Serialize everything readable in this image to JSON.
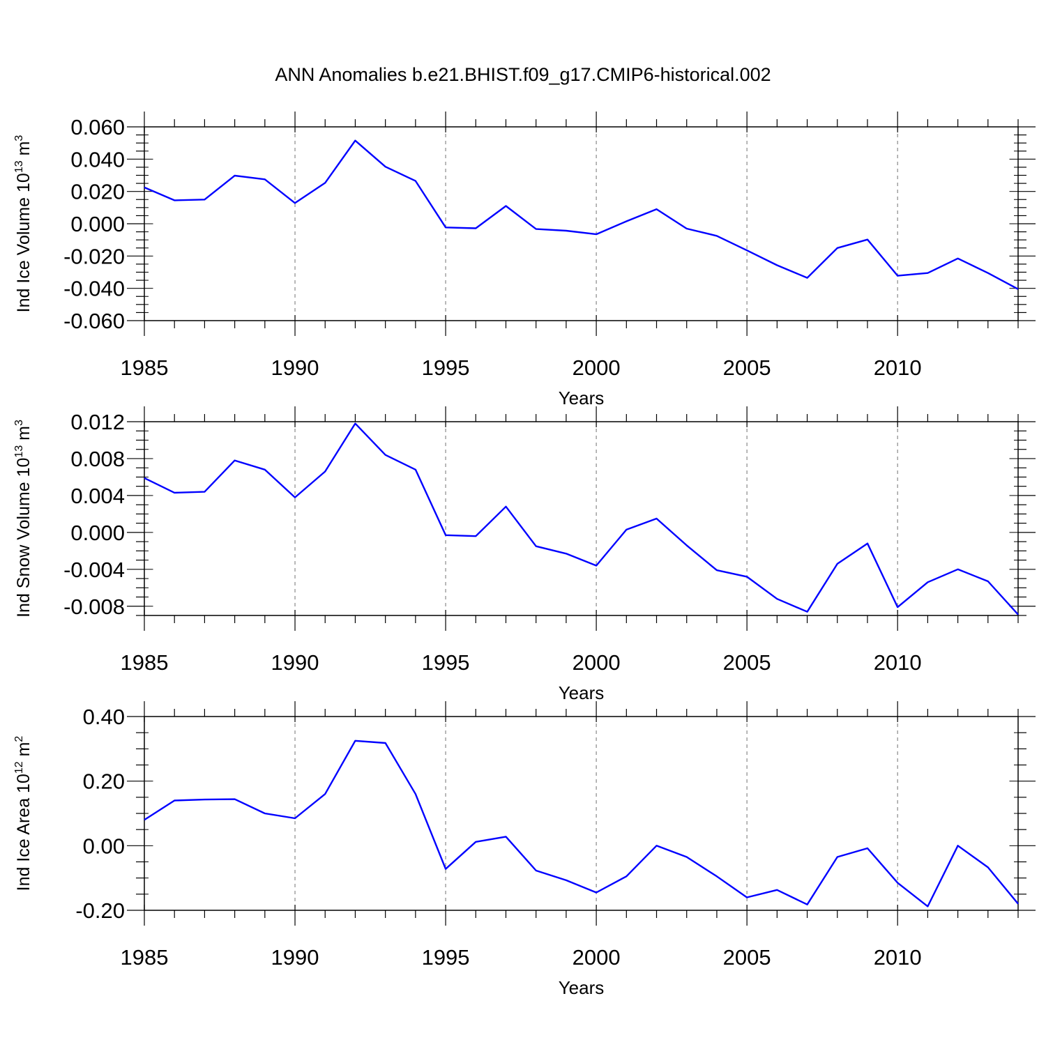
{
  "title": "ANN Anomalies b.e21.BHIST.f09_g17.CMIP6-historical.002",
  "chart_data": [
    {
      "type": "line",
      "ylabel_main": "Ind Ice Volume 10",
      "ylabel_exp": "13",
      "ylabel_unit": " m",
      "ylabel_unit_exp": "3",
      "xlabel": "Years",
      "xlim": [
        1985,
        2014
      ],
      "ylim": [
        -0.06,
        0.06
      ],
      "ytick_values": [
        -0.06,
        -0.04,
        -0.02,
        0.0,
        0.02,
        0.04,
        0.06
      ],
      "ytick_labels": [
        "-0.060",
        "-0.040",
        "-0.020",
        "0.000",
        "0.020",
        "0.040",
        "0.060"
      ],
      "xtick_values": [
        1985,
        1990,
        1995,
        2000,
        2005,
        2010
      ],
      "xtick_labels": [
        "1985",
        "1990",
        "1995",
        "2000",
        "2005",
        "2010"
      ],
      "grid": "vertical dashed at labeled years",
      "line_color": "#0000ff",
      "x": [
        1985,
        1986,
        1987,
        1988,
        1989,
        1990,
        1991,
        1992,
        1993,
        1994,
        1995,
        1996,
        1997,
        1998,
        1999,
        2000,
        2001,
        2002,
        2003,
        2004,
        2005,
        2006,
        2007,
        2008,
        2009,
        2010,
        2011,
        2012,
        2013,
        2014
      ],
      "values": [
        0.0225,
        0.0145,
        0.015,
        0.0298,
        0.0275,
        0.0128,
        0.0253,
        0.0515,
        0.0353,
        0.0265,
        -0.0023,
        -0.0028,
        0.011,
        -0.0033,
        -0.0043,
        -0.0065,
        0.0015,
        0.009,
        -0.003,
        -0.0075,
        -0.0165,
        -0.0257,
        -0.0335,
        -0.015,
        -0.0098,
        -0.0322,
        -0.0305,
        -0.0215,
        -0.0305,
        -0.0405
      ]
    },
    {
      "type": "line",
      "ylabel_main": "Ind Snow Volume 10",
      "ylabel_exp": "13",
      "ylabel_unit": " m",
      "ylabel_unit_exp": "3",
      "xlabel": "Years",
      "xlim": [
        1985,
        2014
      ],
      "ylim": [
        -0.009,
        0.012
      ],
      "ytick_values": [
        -0.008,
        -0.004,
        0.0,
        0.004,
        0.008,
        0.012
      ],
      "ytick_labels": [
        "-0.008",
        "-0.004",
        "0.000",
        "0.004",
        "0.008",
        "0.012"
      ],
      "xtick_values": [
        1985,
        1990,
        1995,
        2000,
        2005,
        2010
      ],
      "xtick_labels": [
        "1985",
        "1990",
        "1995",
        "2000",
        "2005",
        "2010"
      ],
      "grid": "vertical dashed at labeled years",
      "line_color": "#0000ff",
      "x": [
        1985,
        1986,
        1987,
        1988,
        1989,
        1990,
        1991,
        1992,
        1993,
        1994,
        1995,
        1996,
        1997,
        1998,
        1999,
        2000,
        2001,
        2002,
        2003,
        2004,
        2005,
        2006,
        2007,
        2008,
        2009,
        2010,
        2011,
        2012,
        2013,
        2014
      ],
      "values": [
        0.0059,
        0.0043,
        0.0044,
        0.0078,
        0.0068,
        0.0038,
        0.0066,
        0.0118,
        0.0084,
        0.0068,
        -0.0003,
        -0.0004,
        0.0028,
        -0.0015,
        -0.0023,
        -0.0036,
        0.0003,
        0.0015,
        -0.0014,
        -0.0041,
        -0.0048,
        -0.0072,
        -0.0086,
        -0.0034,
        -0.0012,
        -0.0081,
        -0.0054,
        -0.004,
        -0.0053,
        -0.0089
      ]
    },
    {
      "type": "line",
      "ylabel_main": "Ind Ice Area 10",
      "ylabel_exp": "12",
      "ylabel_unit": " m",
      "ylabel_unit_exp": "2",
      "xlabel": "Years",
      "xlim": [
        1985,
        2014
      ],
      "ylim": [
        -0.2,
        0.4
      ],
      "ytick_values": [
        -0.2,
        0.0,
        0.2,
        0.4
      ],
      "ytick_labels": [
        "-0.20",
        "0.00",
        "0.20",
        "0.40"
      ],
      "xtick_values": [
        1985,
        1990,
        1995,
        2000,
        2005,
        2010
      ],
      "xtick_labels": [
        "1985",
        "1990",
        "1995",
        "2000",
        "2005",
        "2010"
      ],
      "grid": "vertical dashed at labeled years",
      "line_color": "#0000ff",
      "x": [
        1985,
        1986,
        1987,
        1988,
        1989,
        1990,
        1991,
        1992,
        1993,
        1994,
        1995,
        1996,
        1997,
        1998,
        1999,
        2000,
        2001,
        2002,
        2003,
        2004,
        2005,
        2006,
        2007,
        2008,
        2009,
        2010,
        2011,
        2012,
        2013,
        2014
      ],
      "values": [
        0.08,
        0.14,
        0.143,
        0.144,
        0.1,
        0.085,
        0.16,
        0.325,
        0.318,
        0.16,
        -0.072,
        0.012,
        0.028,
        -0.077,
        -0.107,
        -0.145,
        -0.095,
        0.0,
        -0.035,
        -0.095,
        -0.16,
        -0.137,
        -0.182,
        -0.035,
        -0.008,
        -0.115,
        -0.188,
        0.0,
        -0.067,
        -0.18
      ]
    }
  ]
}
